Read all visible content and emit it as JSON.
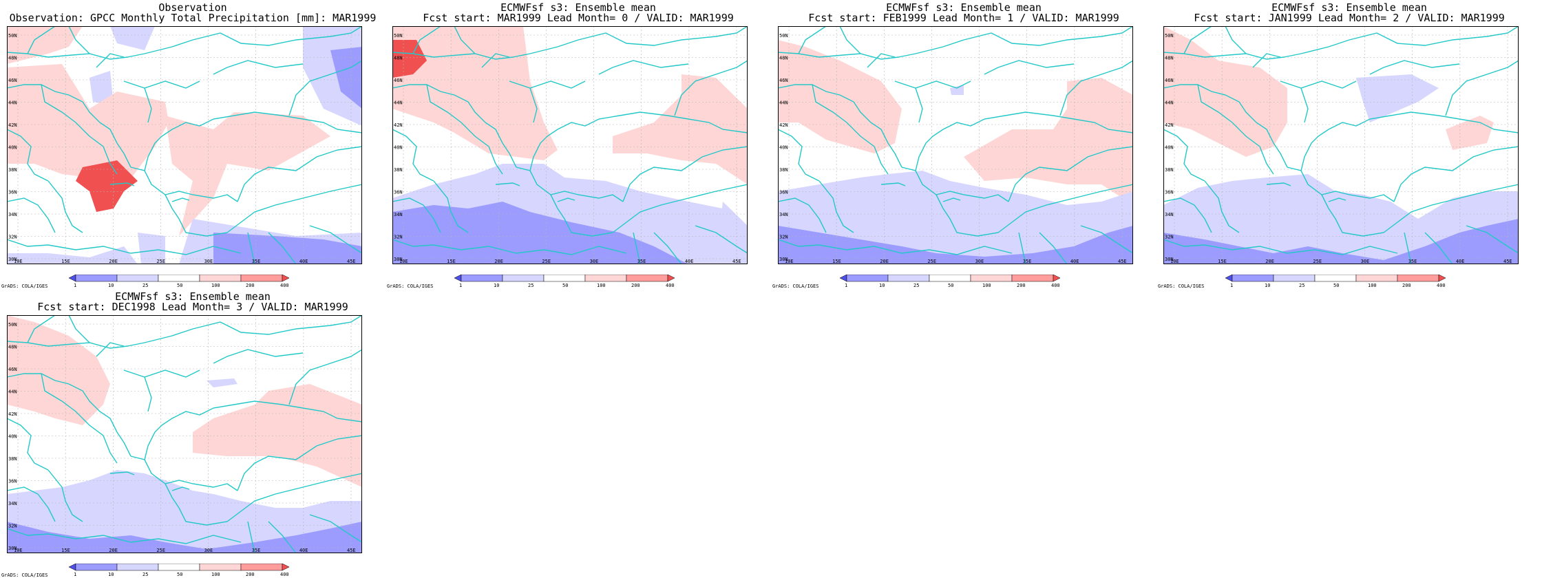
{
  "colors": {
    "coast": "#22c8c8",
    "grid": "#b4b4b4",
    "cbar_levels": [
      "#5050e6",
      "#9c9cff",
      "#d6d6ff",
      "#ffffff",
      "#ffd6d6",
      "#ff9c9c",
      "#f05050"
    ]
  },
  "colorbar": {
    "ticks": [
      "1",
      "10",
      "25",
      "50",
      "100",
      "200",
      "400"
    ]
  },
  "axes": {
    "lon_labels": [
      "10E",
      "15E",
      "20E",
      "25E",
      "30E",
      "35E",
      "40E",
      "45E"
    ],
    "lat_labels": [
      "30N",
      "32N",
      "34N",
      "36N",
      "38N",
      "40N",
      "42N",
      "44N",
      "46N",
      "48N",
      "50N"
    ]
  },
  "credit": "GrADS: COLA/IGES",
  "panels": [
    {
      "title1": "Observation",
      "title2": "Observation: GPCC Monthly Total Precipitation [mm]: MAR1999"
    },
    {
      "title1": "ECMWFsf s3: Ensemble mean",
      "title2": "Fcst start: MAR1999  Lead Month= 0 / VALID: MAR1999"
    },
    {
      "title1": "ECMWFsf s3: Ensemble mean",
      "title2": "Fcst start: FEB1999  Lead Month= 1 / VALID: MAR1999"
    },
    {
      "title1": "ECMWFsf s3: Ensemble mean",
      "title2": "Fcst start: JAN1999  Lead Month= 2 / VALID: MAR1999"
    },
    {
      "title1": "ECMWFsf s3: Ensemble mean",
      "title2": "Fcst start: DEC1998  Lead Month= 3 / VALID: MAR1999"
    }
  ]
}
